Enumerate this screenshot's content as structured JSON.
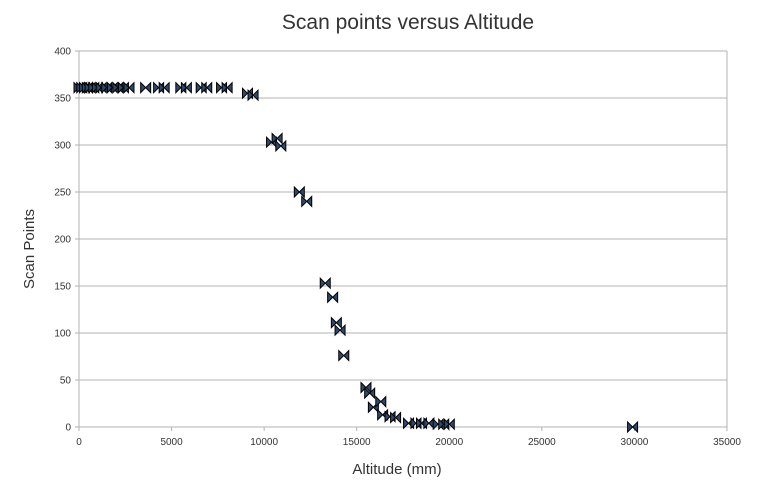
{
  "chart_data": {
    "type": "scatter",
    "title": "Scan points versus Altitude",
    "xlabel": "Altitude (mm)",
    "ylabel": "Scan Points",
    "xlim": [
      0,
      35000
    ],
    "ylim": [
      0,
      400
    ],
    "xticks": [
      0,
      5000,
      10000,
      15000,
      20000,
      25000,
      30000,
      35000
    ],
    "yticks": [
      0,
      50,
      100,
      150,
      200,
      250,
      300,
      350,
      400
    ],
    "grid": "horizontal",
    "legend": "none",
    "marker_color": "#2c4a6e",
    "points": [
      {
        "x": 0,
        "y": 361
      },
      {
        "x": 150,
        "y": 361
      },
      {
        "x": 300,
        "y": 361
      },
      {
        "x": 450,
        "y": 361
      },
      {
        "x": 600,
        "y": 361
      },
      {
        "x": 800,
        "y": 361
      },
      {
        "x": 1000,
        "y": 361
      },
      {
        "x": 1200,
        "y": 361
      },
      {
        "x": 1500,
        "y": 361
      },
      {
        "x": 1800,
        "y": 361
      },
      {
        "x": 2100,
        "y": 361
      },
      {
        "x": 2400,
        "y": 361
      },
      {
        "x": 2700,
        "y": 361
      },
      {
        "x": 3600,
        "y": 361
      },
      {
        "x": 4300,
        "y": 361
      },
      {
        "x": 4600,
        "y": 361
      },
      {
        "x": 5500,
        "y": 361
      },
      {
        "x": 5800,
        "y": 361
      },
      {
        "x": 6600,
        "y": 361
      },
      {
        "x": 6900,
        "y": 361
      },
      {
        "x": 7700,
        "y": 361
      },
      {
        "x": 8000,
        "y": 361
      },
      {
        "x": 9100,
        "y": 355
      },
      {
        "x": 9400,
        "y": 353
      },
      {
        "x": 10400,
        "y": 303
      },
      {
        "x": 10700,
        "y": 307
      },
      {
        "x": 10900,
        "y": 299
      },
      {
        "x": 11900,
        "y": 250
      },
      {
        "x": 12300,
        "y": 240
      },
      {
        "x": 13300,
        "y": 153
      },
      {
        "x": 13700,
        "y": 138
      },
      {
        "x": 13900,
        "y": 111
      },
      {
        "x": 14100,
        "y": 103
      },
      {
        "x": 14300,
        "y": 76
      },
      {
        "x": 15500,
        "y": 42
      },
      {
        "x": 15700,
        "y": 36
      },
      {
        "x": 15900,
        "y": 21
      },
      {
        "x": 16300,
        "y": 27
      },
      {
        "x": 16400,
        "y": 13
      },
      {
        "x": 16800,
        "y": 11
      },
      {
        "x": 17100,
        "y": 10
      },
      {
        "x": 17800,
        "y": 4
      },
      {
        "x": 18200,
        "y": 4
      },
      {
        "x": 18500,
        "y": 4
      },
      {
        "x": 18900,
        "y": 4
      },
      {
        "x": 19400,
        "y": 3
      },
      {
        "x": 19700,
        "y": 3
      },
      {
        "x": 20000,
        "y": 3
      },
      {
        "x": 29900,
        "y": 0
      }
    ]
  }
}
